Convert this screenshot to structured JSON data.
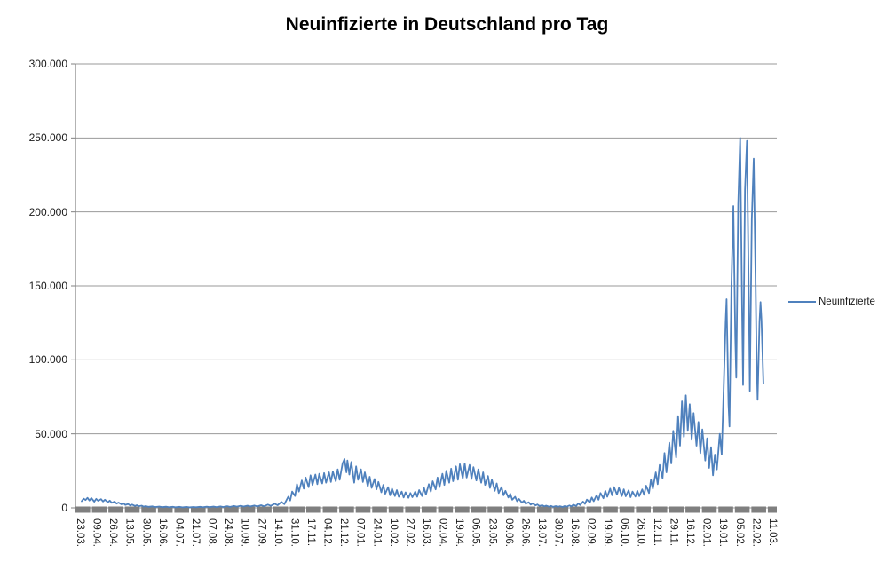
{
  "title": "Neuinfizierte in Deutschland pro Tag",
  "legend": {
    "label": "Neuinfizierte"
  },
  "colors": {
    "series_line": "#4F81BD",
    "gridline": "#9a9a9a",
    "axis_line": "#808080",
    "axis_band": "#7F7F7F",
    "text": "#1a1a1a",
    "title_text": "#000000",
    "background": "#ffffff"
  },
  "chart_data": {
    "type": "line",
    "title": "Neuinfizierte in Deutschland pro Tag",
    "xlabel": "",
    "ylabel": "",
    "ylim": [
      0,
      300000
    ],
    "grid": "horizontal",
    "legend_position": "right",
    "y_tick_labels": [
      "300.000",
      "250.000",
      "200.000",
      "150.000",
      "100.000",
      "50.000",
      "0"
    ],
    "y_tick_values": [
      300000,
      250000,
      200000,
      150000,
      100000,
      50000,
      0
    ],
    "x_tick_labels": [
      "23.03.",
      "09.04.",
      "26.04.",
      "13.05.",
      "30.05.",
      "16.06.",
      "04.07.",
      "21.07.",
      "07.08.",
      "24.08.",
      "10.09.",
      "27.09.",
      "14.10.",
      "31.10.",
      "17.11.",
      "04.12.",
      "21.12.",
      "07.01.",
      "24.01.",
      "10.02.",
      "27.02.",
      "16.03.",
      "02.04.",
      "19.04.",
      "06.05.",
      "23.05.",
      "09.06.",
      "26.06.",
      "13.07.",
      "30.07.",
      "16.08.",
      "02.09.",
      "19.09.",
      "06.10.",
      "26.10.",
      "12.11.",
      "29.11.",
      "16.12.",
      "02.01.",
      "19.01.",
      "05.02.",
      "22.02.",
      "11.03."
    ],
    "x_tick_interval_days": 17,
    "series": [
      {
        "name": "Neuinfizierte",
        "color": "#4F81BD",
        "points_format": "[day_offset_from_first_category, new_infections]",
        "points": [
          [
            0,
            4500
          ],
          [
            2,
            6200
          ],
          [
            4,
            5300
          ],
          [
            6,
            6800
          ],
          [
            8,
            5000
          ],
          [
            10,
            6600
          ],
          [
            13,
            4200
          ],
          [
            15,
            6100
          ],
          [
            17,
            4800
          ],
          [
            20,
            5900
          ],
          [
            22,
            4300
          ],
          [
            24,
            5500
          ],
          [
            27,
            3800
          ],
          [
            29,
            4900
          ],
          [
            31,
            3400
          ],
          [
            34,
            4200
          ],
          [
            36,
            2900
          ],
          [
            38,
            3600
          ],
          [
            41,
            2400
          ],
          [
            43,
            3100
          ],
          [
            45,
            2000
          ],
          [
            48,
            2600
          ],
          [
            50,
            1600
          ],
          [
            52,
            2200
          ],
          [
            55,
            1300
          ],
          [
            57,
            1800
          ],
          [
            59,
            1100
          ],
          [
            62,
            1500
          ],
          [
            64,
            800
          ],
          [
            66,
            1200
          ],
          [
            69,
            700
          ],
          [
            73,
            1000
          ],
          [
            76,
            600
          ],
          [
            80,
            900
          ],
          [
            83,
            500
          ],
          [
            87,
            800
          ],
          [
            90,
            450
          ],
          [
            94,
            750
          ],
          [
            97,
            400
          ],
          [
            101,
            700
          ],
          [
            104,
            380
          ],
          [
            108,
            650
          ],
          [
            111,
            350
          ],
          [
            115,
            600
          ],
          [
            118,
            400
          ],
          [
            122,
            700
          ],
          [
            125,
            450
          ],
          [
            129,
            800
          ],
          [
            132,
            500
          ],
          [
            136,
            900
          ],
          [
            139,
            550
          ],
          [
            143,
            1000
          ],
          [
            146,
            600
          ],
          [
            150,
            1100
          ],
          [
            153,
            700
          ],
          [
            157,
            1300
          ],
          [
            160,
            800
          ],
          [
            164,
            1400
          ],
          [
            167,
            900
          ],
          [
            171,
            1500
          ],
          [
            174,
            950
          ],
          [
            178,
            1600
          ],
          [
            181,
            1000
          ],
          [
            185,
            1800
          ],
          [
            188,
            1100
          ],
          [
            192,
            2200
          ],
          [
            195,
            1400
          ],
          [
            199,
            2800
          ],
          [
            202,
            1800
          ],
          [
            206,
            4000
          ],
          [
            209,
            2500
          ],
          [
            213,
            7500
          ],
          [
            215,
            5000
          ],
          [
            217,
            11000
          ],
          [
            220,
            8000
          ],
          [
            222,
            16000
          ],
          [
            224,
            11000
          ],
          [
            227,
            18500
          ],
          [
            229,
            13000
          ],
          [
            231,
            20500
          ],
          [
            234,
            14000
          ],
          [
            236,
            22000
          ],
          [
            238,
            15500
          ],
          [
            241,
            22500
          ],
          [
            243,
            16000
          ],
          [
            245,
            23000
          ],
          [
            248,
            16500
          ],
          [
            250,
            23500
          ],
          [
            252,
            17000
          ],
          [
            255,
            24000
          ],
          [
            257,
            17500
          ],
          [
            259,
            24500
          ],
          [
            262,
            18000
          ],
          [
            264,
            26000
          ],
          [
            266,
            19000
          ],
          [
            269,
            30000
          ],
          [
            271,
            33000
          ],
          [
            273,
            24000
          ],
          [
            274,
            32000
          ],
          [
            276,
            22500
          ],
          [
            278,
            31000
          ],
          [
            281,
            17000
          ],
          [
            283,
            28000
          ],
          [
            285,
            19000
          ],
          [
            288,
            26000
          ],
          [
            290,
            17500
          ],
          [
            292,
            24000
          ],
          [
            295,
            14500
          ],
          [
            297,
            21000
          ],
          [
            299,
            13500
          ],
          [
            302,
            19500
          ],
          [
            304,
            12500
          ],
          [
            306,
            17500
          ],
          [
            309,
            10500
          ],
          [
            311,
            15500
          ],
          [
            313,
            9500
          ],
          [
            316,
            14000
          ],
          [
            318,
            8500
          ],
          [
            320,
            13000
          ],
          [
            323,
            8000
          ],
          [
            325,
            12000
          ],
          [
            327,
            7500
          ],
          [
            330,
            11000
          ],
          [
            332,
            7000
          ],
          [
            334,
            10500
          ],
          [
            337,
            6800
          ],
          [
            339,
            10000
          ],
          [
            341,
            7200
          ],
          [
            344,
            11000
          ],
          [
            346,
            7500
          ],
          [
            348,
            12000
          ],
          [
            351,
            8000
          ],
          [
            353,
            13500
          ],
          [
            355,
            9000
          ],
          [
            358,
            16000
          ],
          [
            360,
            11000
          ],
          [
            362,
            18000
          ],
          [
            365,
            12500
          ],
          [
            367,
            20500
          ],
          [
            369,
            14000
          ],
          [
            372,
            23000
          ],
          [
            374,
            15500
          ],
          [
            376,
            25000
          ],
          [
            379,
            17000
          ],
          [
            381,
            26500
          ],
          [
            383,
            18000
          ],
          [
            386,
            28000
          ],
          [
            388,
            19000
          ],
          [
            390,
            29500
          ],
          [
            393,
            20000
          ],
          [
            395,
            30000
          ],
          [
            397,
            20500
          ],
          [
            400,
            29000
          ],
          [
            402,
            19500
          ],
          [
            404,
            27500
          ],
          [
            407,
            18500
          ],
          [
            409,
            26000
          ],
          [
            412,
            17000
          ],
          [
            414,
            24000
          ],
          [
            416,
            15500
          ],
          [
            419,
            21500
          ],
          [
            421,
            13500
          ],
          [
            423,
            19000
          ],
          [
            426,
            11500
          ],
          [
            428,
            16500
          ],
          [
            430,
            10000
          ],
          [
            433,
            14000
          ],
          [
            435,
            8500
          ],
          [
            437,
            11500
          ],
          [
            440,
            7000
          ],
          [
            442,
            9500
          ],
          [
            444,
            5500
          ],
          [
            447,
            7500
          ],
          [
            449,
            4500
          ],
          [
            451,
            6000
          ],
          [
            454,
            3500
          ],
          [
            456,
            4800
          ],
          [
            458,
            2800
          ],
          [
            461,
            3800
          ],
          [
            463,
            2200
          ],
          [
            465,
            3000
          ],
          [
            468,
            1700
          ],
          [
            470,
            2300
          ],
          [
            472,
            1300
          ],
          [
            475,
            1800
          ],
          [
            477,
            1000
          ],
          [
            479,
            1500
          ],
          [
            482,
            800
          ],
          [
            484,
            1300
          ],
          [
            486,
            700
          ],
          [
            489,
            1200
          ],
          [
            491,
            650
          ],
          [
            493,
            1100
          ],
          [
            496,
            600
          ],
          [
            498,
            1200
          ],
          [
            500,
            800
          ],
          [
            503,
            1600
          ],
          [
            505,
            1000
          ],
          [
            507,
            2100
          ],
          [
            510,
            1300
          ],
          [
            512,
            3000
          ],
          [
            514,
            1900
          ],
          [
            517,
            4200
          ],
          [
            519,
            2700
          ],
          [
            521,
            5600
          ],
          [
            524,
            3600
          ],
          [
            526,
            7000
          ],
          [
            528,
            4500
          ],
          [
            531,
            8500
          ],
          [
            533,
            5500
          ],
          [
            535,
            10000
          ],
          [
            538,
            6500
          ],
          [
            540,
            11500
          ],
          [
            542,
            7500
          ],
          [
            545,
            13000
          ],
          [
            547,
            8500
          ],
          [
            549,
            14000
          ],
          [
            552,
            9000
          ],
          [
            554,
            13500
          ],
          [
            557,
            8000
          ],
          [
            559,
            12500
          ],
          [
            561,
            7800
          ],
          [
            564,
            11800
          ],
          [
            566,
            7200
          ],
          [
            568,
            11000
          ],
          [
            571,
            7600
          ],
          [
            573,
            11500
          ],
          [
            575,
            7900
          ],
          [
            578,
            12500
          ],
          [
            580,
            8800
          ],
          [
            582,
            15000
          ],
          [
            585,
            10000
          ],
          [
            587,
            19000
          ],
          [
            589,
            13000
          ],
          [
            592,
            24000
          ],
          [
            594,
            16000
          ],
          [
            596,
            29000
          ],
          [
            599,
            20000
          ],
          [
            601,
            37000
          ],
          [
            603,
            24000
          ],
          [
            606,
            44000
          ],
          [
            608,
            30000
          ],
          [
            610,
            52000
          ],
          [
            613,
            34000
          ],
          [
            615,
            62000
          ],
          [
            617,
            42000
          ],
          [
            619,
            72000
          ],
          [
            621,
            48000
          ],
          [
            623,
            76000
          ],
          [
            625,
            52000
          ],
          [
            627,
            70000
          ],
          [
            629,
            46000
          ],
          [
            631,
            64000
          ],
          [
            634,
            42000
          ],
          [
            636,
            58000
          ],
          [
            638,
            37000
          ],
          [
            640,
            53000
          ],
          [
            643,
            32000
          ],
          [
            645,
            47000
          ],
          [
            647,
            27000
          ],
          [
            649,
            41000
          ],
          [
            651,
            22000
          ],
          [
            653,
            36000
          ],
          [
            655,
            26000
          ],
          [
            658,
            50000
          ],
          [
            660,
            36000
          ],
          [
            662,
            80000
          ],
          [
            664,
            125000
          ],
          [
            665,
            141000
          ],
          [
            667,
            70000
          ],
          [
            668,
            55000
          ],
          [
            670,
            150000
          ],
          [
            672,
            204000
          ],
          [
            674,
            115000
          ],
          [
            675,
            88000
          ],
          [
            677,
            205000
          ],
          [
            679,
            250000
          ],
          [
            681,
            135000
          ],
          [
            682,
            83000
          ],
          [
            684,
            215000
          ],
          [
            686,
            248000
          ],
          [
            688,
            140000
          ],
          [
            689,
            79000
          ],
          [
            691,
            195000
          ],
          [
            693,
            236000
          ],
          [
            695,
            150000
          ],
          [
            696,
            100000
          ],
          [
            697,
            73000
          ],
          [
            699,
            126000
          ],
          [
            700,
            139000
          ],
          [
            701,
            127000
          ],
          [
            703,
            84000
          ]
        ]
      }
    ]
  }
}
